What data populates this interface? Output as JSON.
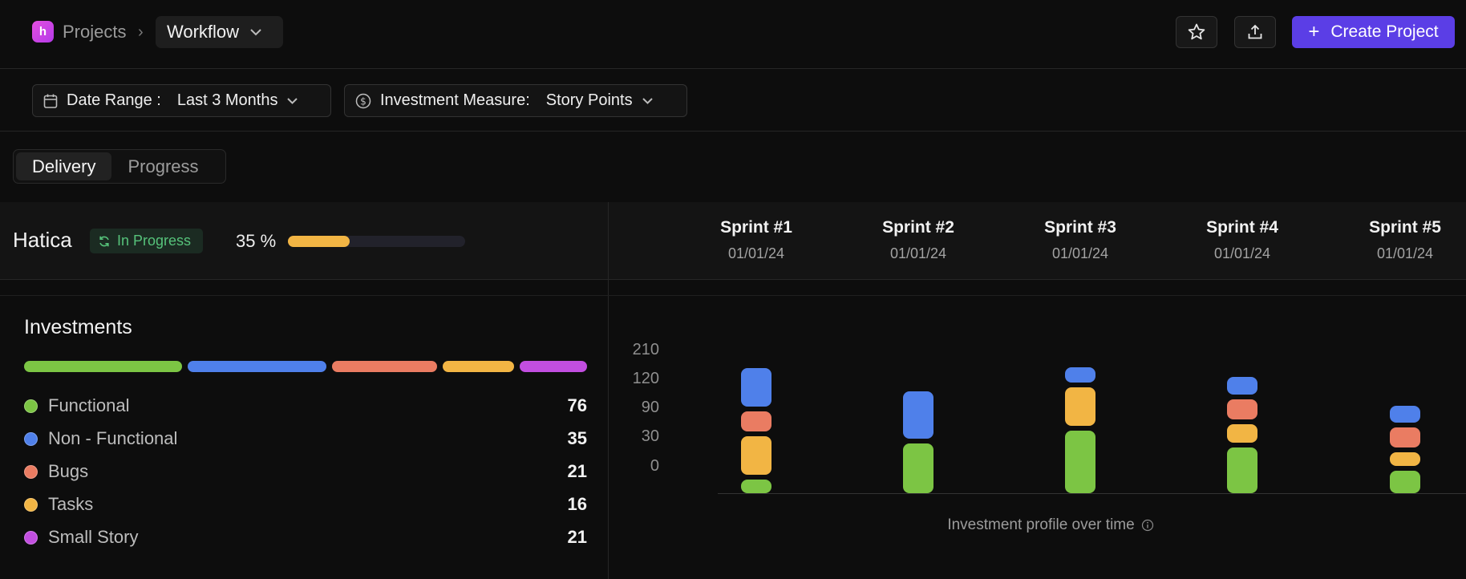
{
  "header": {
    "breadcrumb_root": "Projects",
    "breadcrumb_current": "Workflow",
    "create_label": "Create Project"
  },
  "filters": {
    "date_label": "Date Range :",
    "date_value": "Last 3 Months",
    "measure_label": "Investment Measure:",
    "measure_value": "Story Points"
  },
  "tabs": [
    {
      "label": "Delivery",
      "active": true
    },
    {
      "label": "Progress",
      "active": false
    }
  ],
  "project": {
    "name": "Hatica",
    "status": "In Progress",
    "percent_label": "35 %",
    "progress": 0.35
  },
  "sprints": [
    {
      "name": "Sprint #1",
      "date": "01/01/24"
    },
    {
      "name": "Sprint #2",
      "date": "01/01/24"
    },
    {
      "name": "Sprint #3",
      "date": "01/01/24"
    },
    {
      "name": "Sprint #4",
      "date": "01/01/24"
    },
    {
      "name": "Sprint #5",
      "date": "01/01/24"
    }
  ],
  "investments": {
    "title": "Investments",
    "items": [
      {
        "label": "Functional",
        "value": "76",
        "color": "#7cc544"
      },
      {
        "label": "Non - Functional",
        "value": "35",
        "color": "#4f80ea"
      },
      {
        "label": "Bugs",
        "value": "21",
        "color": "#ea7c62"
      },
      {
        "label": "Tasks",
        "value": "16",
        "color": "#f2b544"
      },
      {
        "label": "Small Story",
        "value": "21",
        "color": "#c24ee0"
      }
    ]
  },
  "chart_data": {
    "type": "bar",
    "stacked": true,
    "title": "",
    "caption": "Investment profile over time",
    "categories": [
      "Sprint #1",
      "Sprint #2",
      "Sprint #3",
      "Sprint #4",
      "Sprint #5"
    ],
    "y_ticks": [
      "210",
      "120",
      "90",
      "30",
      "0"
    ],
    "series": [
      {
        "name": "Functional",
        "color": "#7cc544",
        "values": [
          17,
          62,
          78,
          57,
          28
        ]
      },
      {
        "name": "Tasks",
        "color": "#f2b544",
        "values": [
          48,
          0,
          48,
          23,
          17
        ]
      },
      {
        "name": "Bugs",
        "color": "#ea7c62",
        "values": [
          25,
          0,
          0,
          25,
          25
        ]
      },
      {
        "name": "Non - Functional",
        "color": "#4f80ea",
        "values": [
          48,
          59,
          19,
          22,
          21
        ]
      }
    ]
  }
}
